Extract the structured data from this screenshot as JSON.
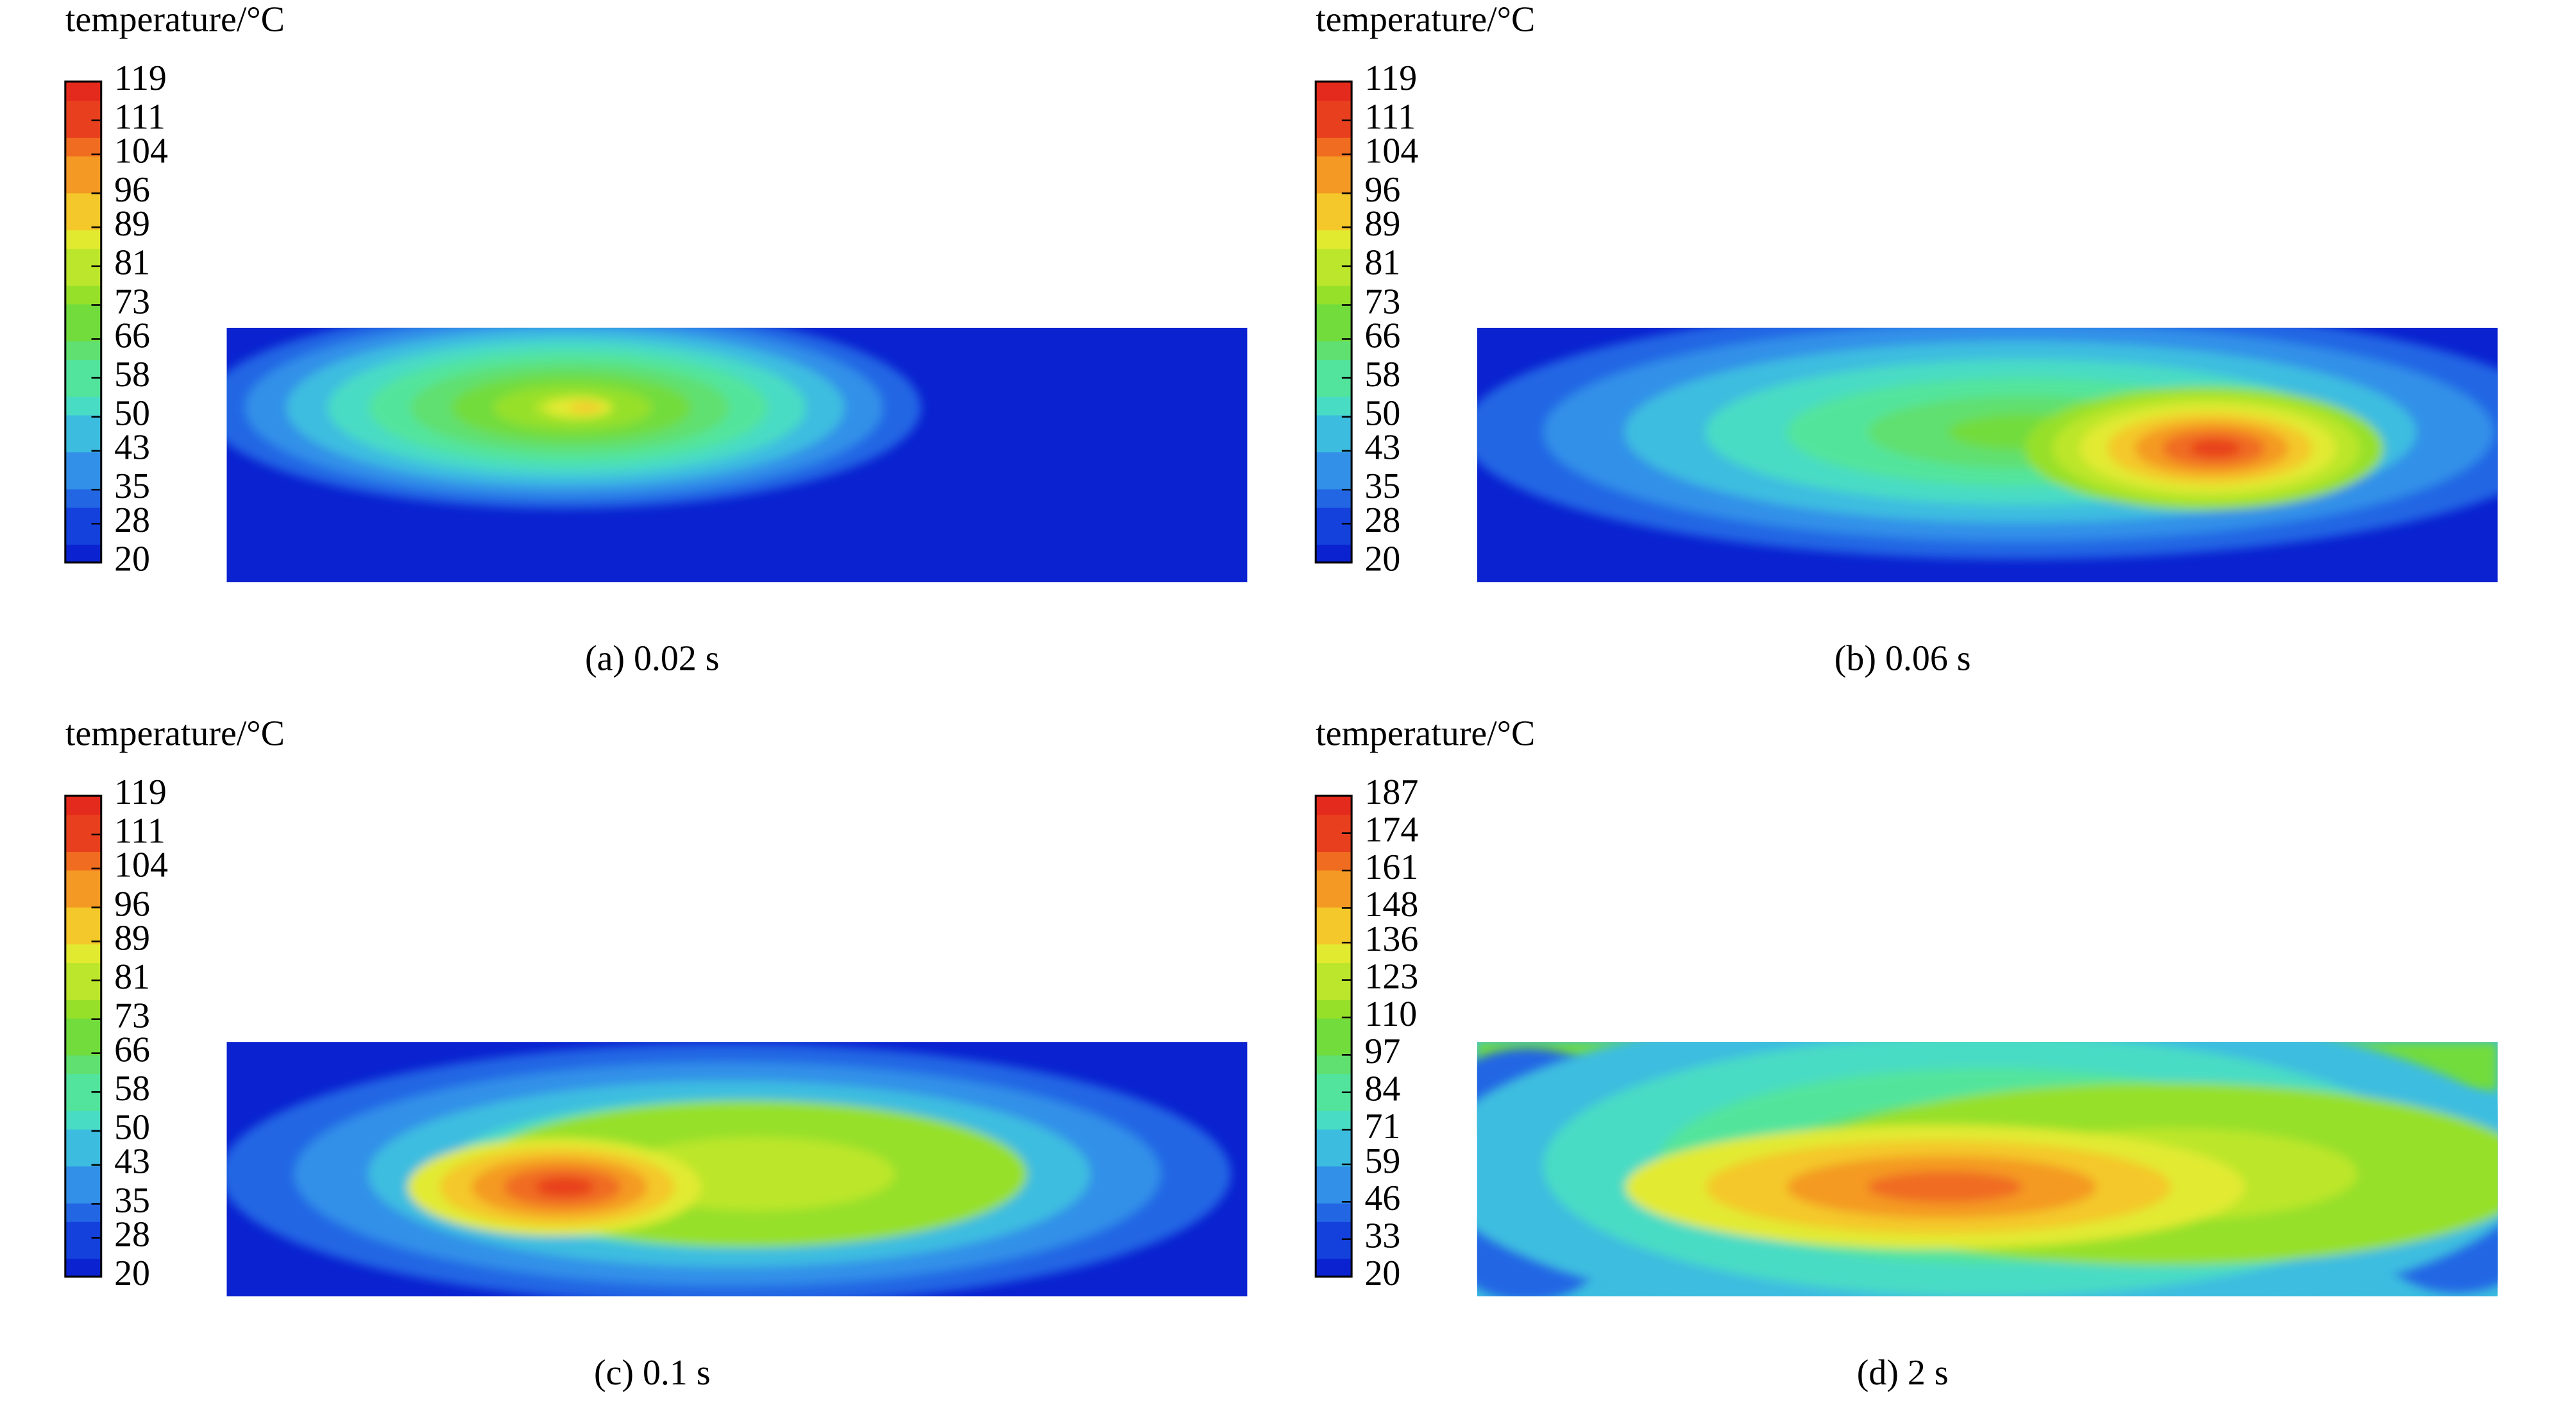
{
  "chart_data": [
    {
      "type": "contour",
      "title": "temperature/°C",
      "caption": "(a) 0.02 s",
      "zlim": [
        20,
        119
      ],
      "zticks": [
        119,
        111,
        104,
        96,
        89,
        81,
        73,
        66,
        58,
        50,
        43,
        35,
        28,
        20
      ]
    },
    {
      "type": "contour",
      "title": "temperature/°C",
      "caption": "(b) 0.06 s",
      "zlim": [
        20,
        119
      ],
      "zticks": [
        119,
        111,
        104,
        96,
        89,
        81,
        73,
        66,
        58,
        50,
        43,
        35,
        28,
        20
      ]
    },
    {
      "type": "contour",
      "title": "temperature/°C",
      "caption": "(c) 0.1 s",
      "zlim": [
        20,
        119
      ],
      "zticks": [
        119,
        111,
        104,
        96,
        89,
        81,
        73,
        66,
        58,
        50,
        43,
        35,
        28,
        20
      ]
    },
    {
      "type": "contour",
      "title": "temperature/°C",
      "caption": "(d) 2 s",
      "zlim": [
        20,
        187
      ],
      "zticks": [
        187,
        174,
        161,
        148,
        136,
        123,
        110,
        97,
        84,
        71,
        59,
        46,
        33,
        20
      ]
    }
  ]
}
